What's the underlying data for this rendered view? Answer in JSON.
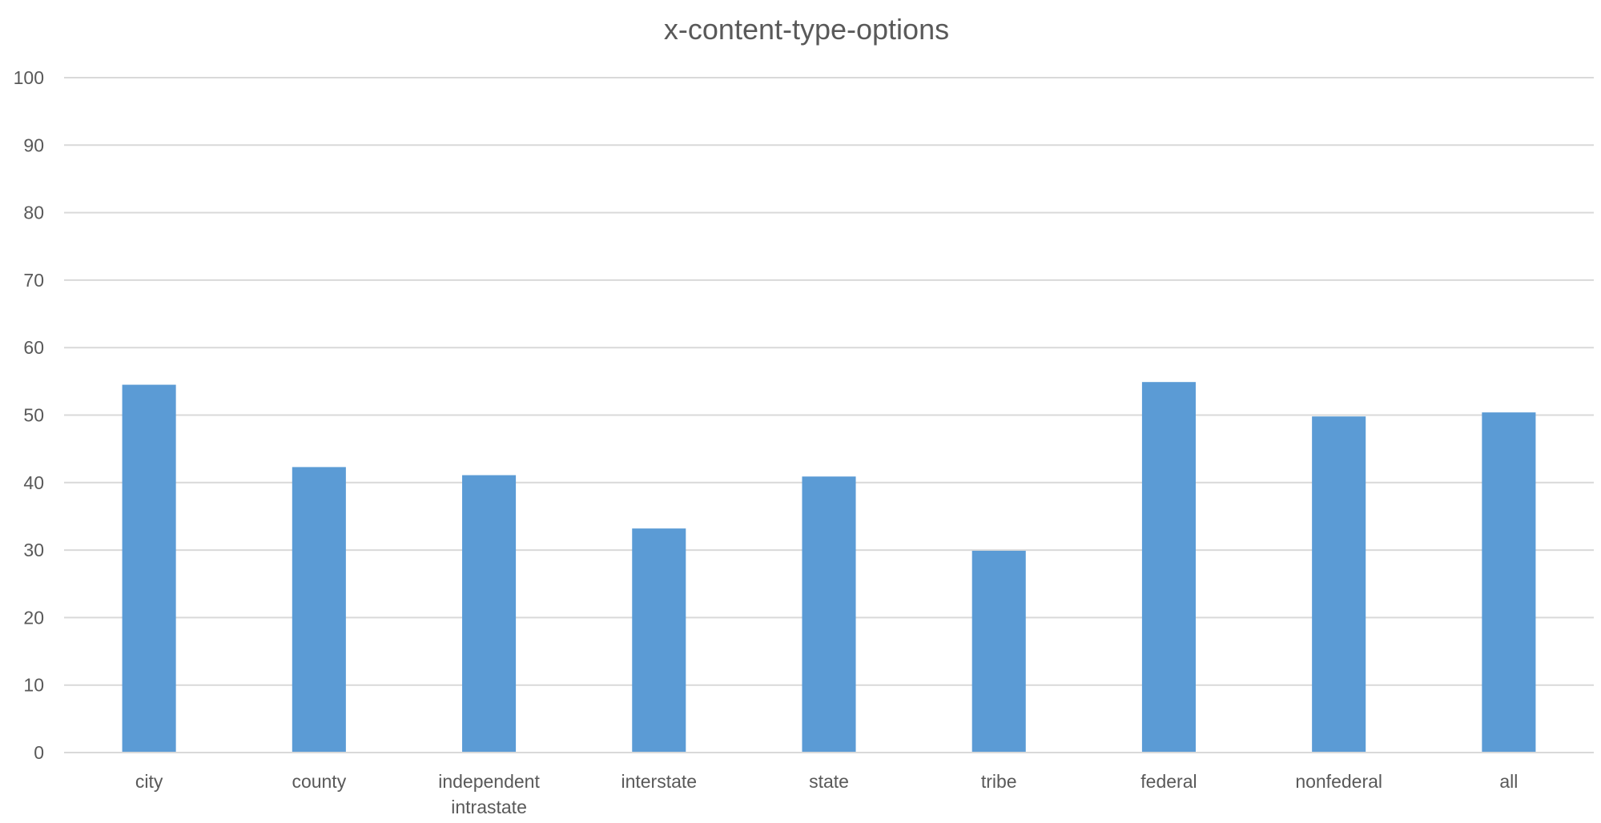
{
  "chart_data": {
    "type": "bar",
    "title": "x-content-type-options",
    "xlabel": "",
    "ylabel": "",
    "categories": [
      [
        "city"
      ],
      [
        "county"
      ],
      [
        "independent",
        "intrastate"
      ],
      [
        "interstate"
      ],
      [
        "state"
      ],
      [
        "tribe"
      ],
      [
        "federal"
      ],
      [
        "nonfederal"
      ],
      [
        "all"
      ]
    ],
    "values": [
      54.5,
      42.3,
      41.1,
      33.2,
      40.9,
      29.9,
      54.9,
      49.8,
      50.4
    ],
    "ylim": [
      0,
      100
    ],
    "yticks": [
      "0",
      "10",
      "20",
      "30",
      "40",
      "50",
      "60",
      "70",
      "80",
      "90",
      "100"
    ],
    "grid": true,
    "legend": "none",
    "bar_color": "#5b9bd5"
  }
}
